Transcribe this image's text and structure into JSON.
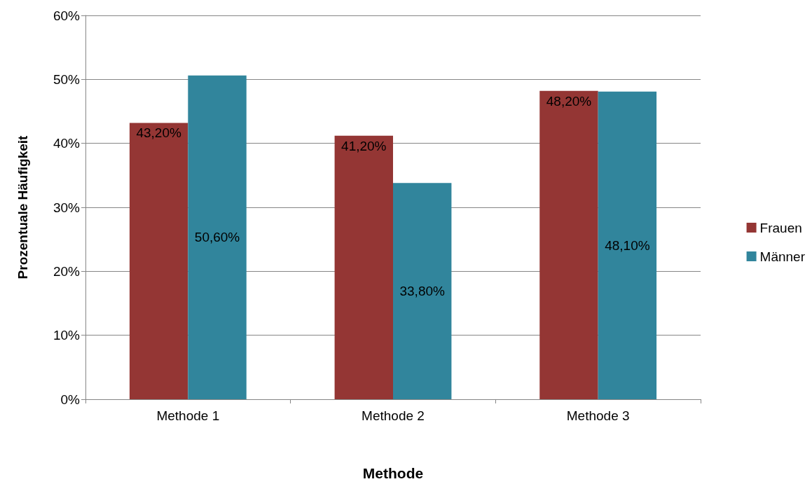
{
  "chart_data": {
    "type": "bar",
    "xlabel": "Methode",
    "ylabel": "Prozentuale Häufigkeit",
    "categories": [
      "Methode 1",
      "Methode 2",
      "Methode 3"
    ],
    "series": [
      {
        "name": "Frauen",
        "color": "#943634",
        "values": [
          43.2,
          41.2,
          48.2
        ],
        "value_labels": [
          "43,20%",
          "41,20%",
          "48,20%"
        ]
      },
      {
        "name": "Männer",
        "color": "#31859c",
        "values": [
          50.6,
          33.8,
          48.1
        ],
        "value_labels": [
          "50,60%",
          "33,80%",
          "48,10%"
        ]
      }
    ],
    "ylim": [
      0,
      60
    ],
    "yticks": [
      {
        "value": 0,
        "label": "0%"
      },
      {
        "value": 10,
        "label": "10%"
      },
      {
        "value": 20,
        "label": "20%"
      },
      {
        "value": 30,
        "label": "30%"
      },
      {
        "value": 40,
        "label": "40%"
      },
      {
        "value": 50,
        "label": "50%"
      },
      {
        "value": 60,
        "label": "60%"
      }
    ],
    "grid": "y",
    "legend": "right"
  }
}
